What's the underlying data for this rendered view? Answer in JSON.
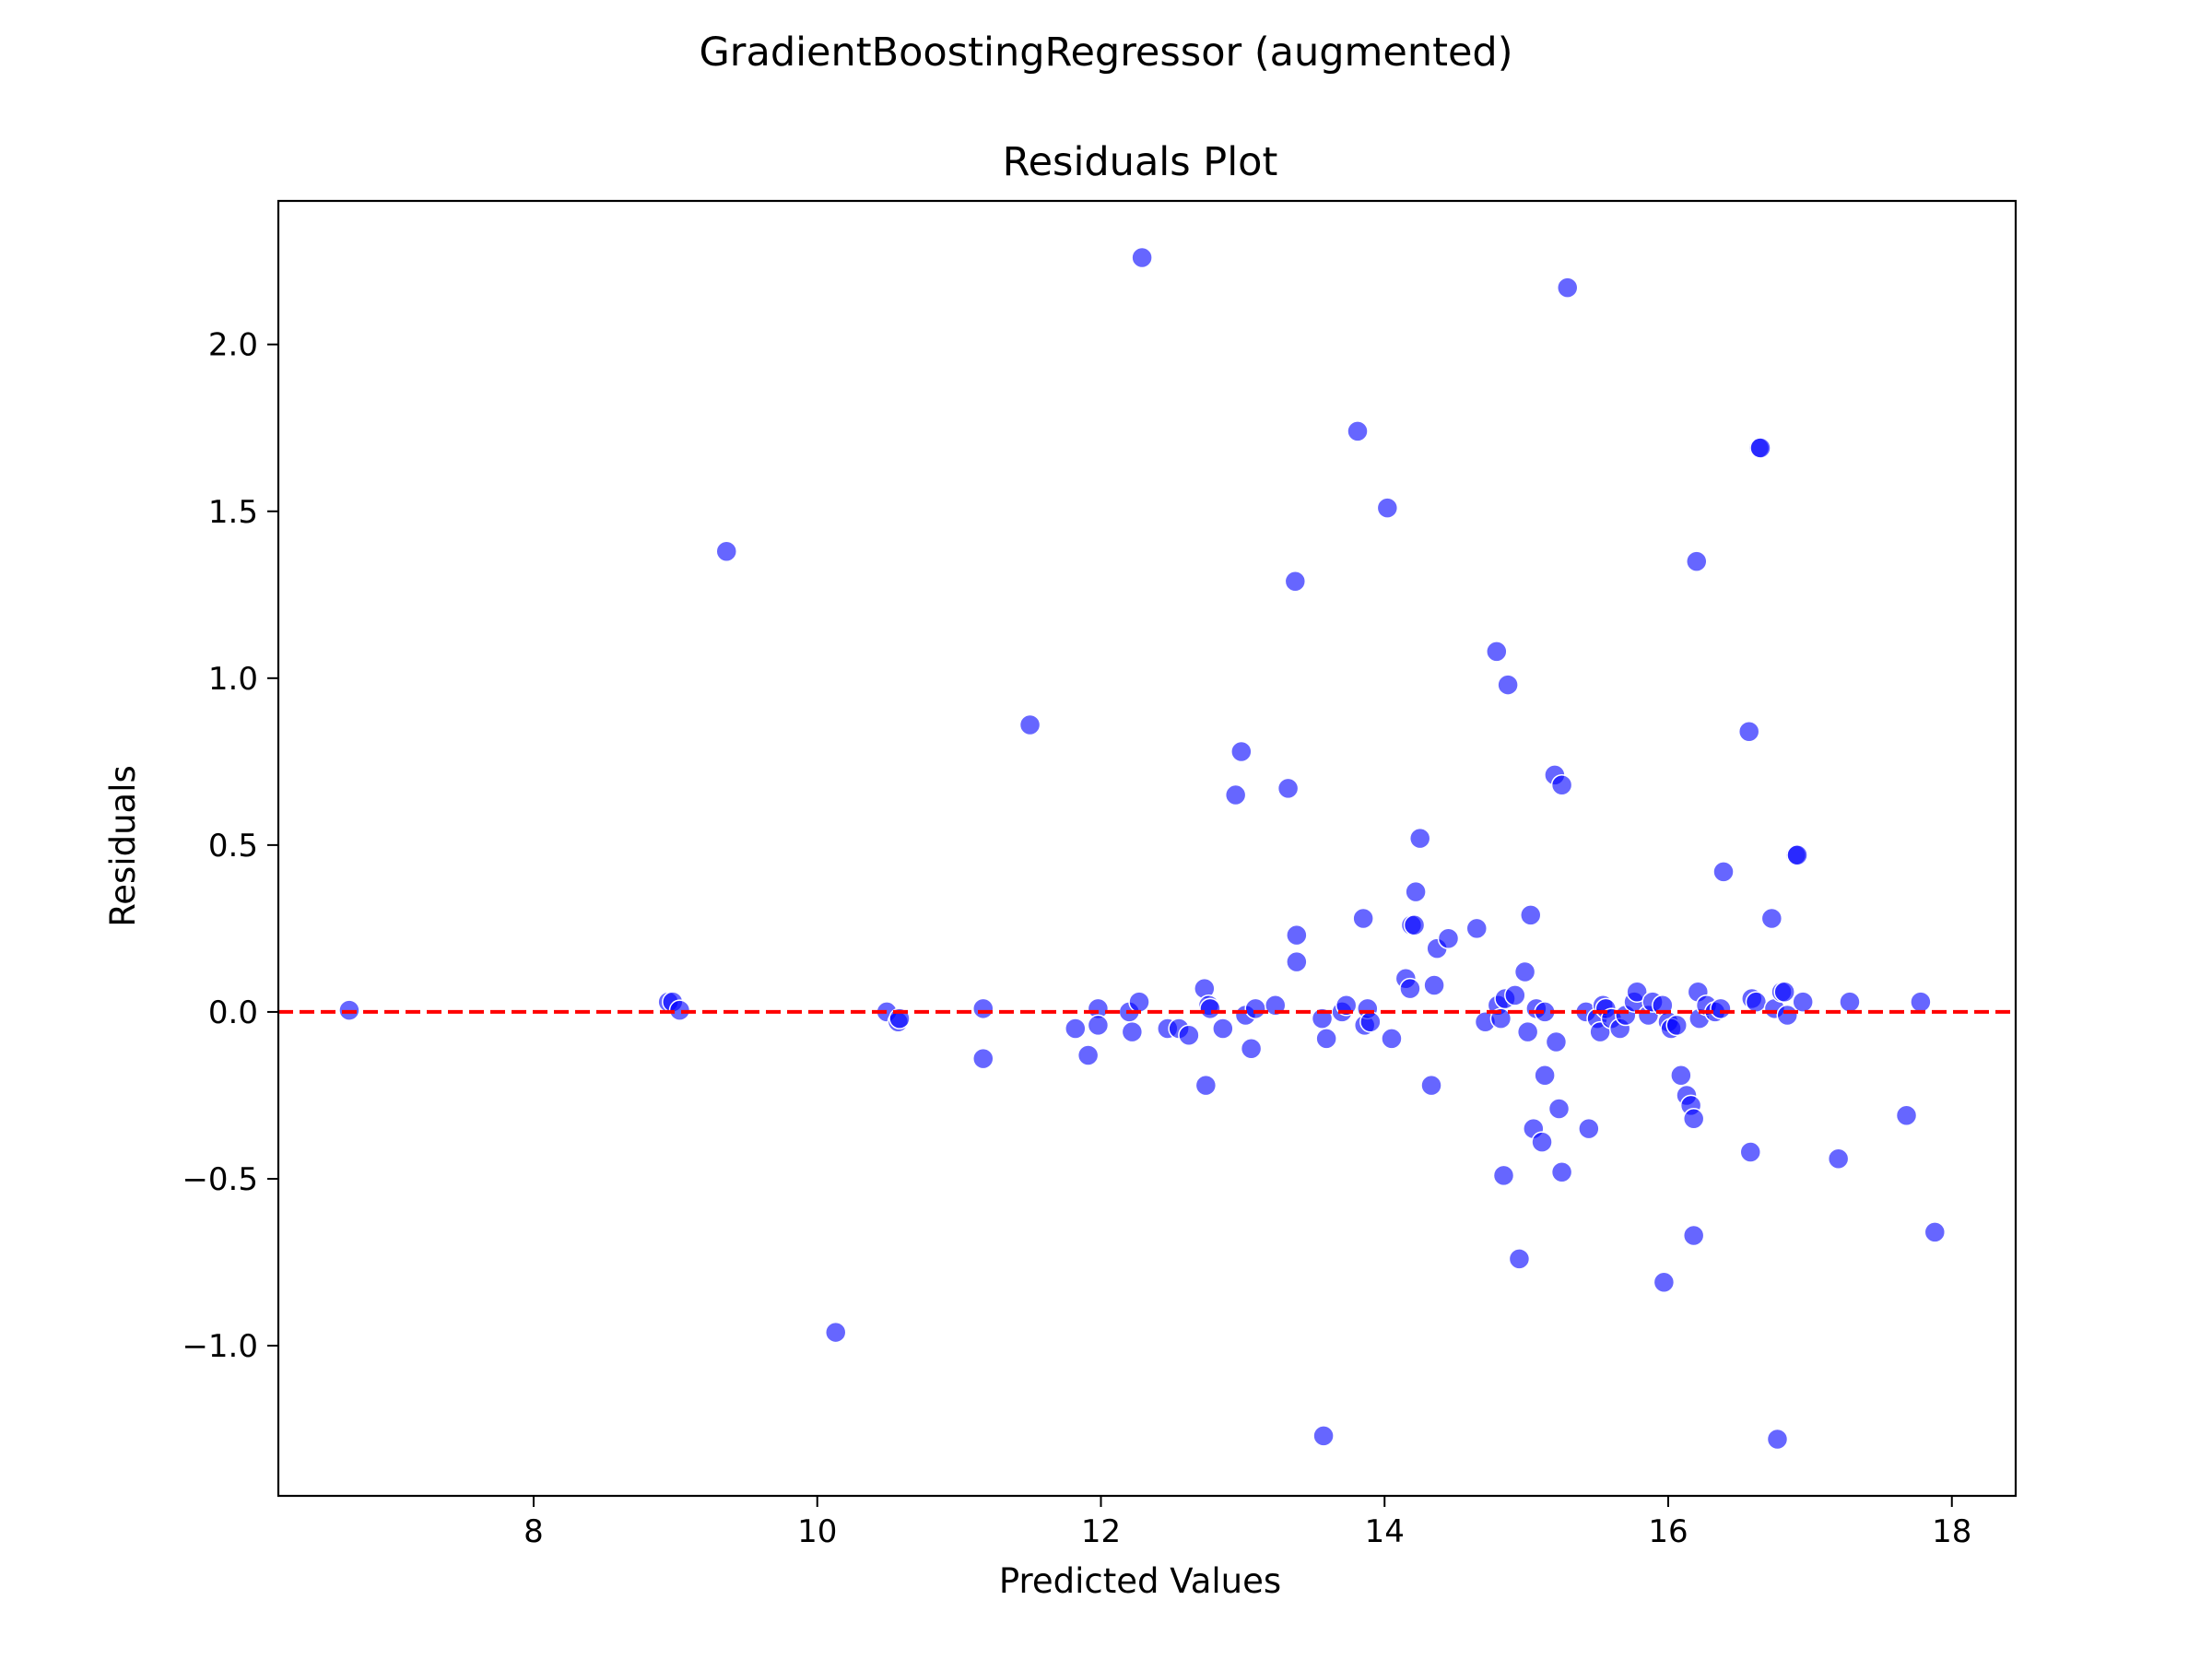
{
  "figure": {
    "suptitle": "GradientBoostingRegressor (augmented)"
  },
  "chart_data": {
    "type": "scatter",
    "title": "Residuals Plot",
    "xlabel": "Predicted Values",
    "ylabel": "Residuals",
    "xlim": [
      6.2,
      18.45
    ],
    "ylim": [
      -1.45,
      2.43
    ],
    "xticks": [
      8,
      10,
      12,
      14,
      16,
      18
    ],
    "xtick_labels": [
      "8",
      "10",
      "12",
      "14",
      "16",
      "18"
    ],
    "yticks": [
      -1.0,
      -0.5,
      0.0,
      0.5,
      1.0,
      1.5,
      2.0
    ],
    "ytick_labels": [
      "−1.0",
      "−0.5",
      "0.0",
      "0.5",
      "1.0",
      "1.5",
      "2.0"
    ],
    "grid": false,
    "point_color": "#0000ff",
    "point_opacity": 0.6,
    "reference_line": {
      "y": 0,
      "color": "#ff0000",
      "style": "dashed"
    },
    "points": [
      {
        "x": 6.7,
        "y": 0.005
      },
      {
        "x": 8.95,
        "y": 0.03
      },
      {
        "x": 8.98,
        "y": 0.03
      },
      {
        "x": 9.03,
        "y": 0.005
      },
      {
        "x": 9.36,
        "y": 1.38
      },
      {
        "x": 10.13,
        "y": -0.96
      },
      {
        "x": 10.49,
        "y": 0.0
      },
      {
        "x": 10.57,
        "y": -0.03
      },
      {
        "x": 10.58,
        "y": -0.02
      },
      {
        "x": 11.17,
        "y": 0.01
      },
      {
        "x": 11.17,
        "y": -0.14
      },
      {
        "x": 11.5,
        "y": 0.86
      },
      {
        "x": 11.82,
        "y": -0.05
      },
      {
        "x": 11.91,
        "y": -0.13
      },
      {
        "x": 11.98,
        "y": 0.01
      },
      {
        "x": 11.98,
        "y": -0.04
      },
      {
        "x": 12.2,
        "y": 0.0
      },
      {
        "x": 12.22,
        "y": -0.06
      },
      {
        "x": 12.27,
        "y": 0.03
      },
      {
        "x": 12.29,
        "y": 2.26
      },
      {
        "x": 12.47,
        "y": -0.05
      },
      {
        "x": 12.55,
        "y": -0.05
      },
      {
        "x": 12.62,
        "y": -0.07
      },
      {
        "x": 12.73,
        "y": 0.07
      },
      {
        "x": 12.74,
        "y": -0.22
      },
      {
        "x": 12.76,
        "y": 0.02
      },
      {
        "x": 12.77,
        "y": 0.01
      },
      {
        "x": 12.86,
        "y": -0.05
      },
      {
        "x": 12.95,
        "y": 0.65
      },
      {
        "x": 12.99,
        "y": 0.78
      },
      {
        "x": 13.02,
        "y": -0.01
      },
      {
        "x": 13.06,
        "y": -0.11
      },
      {
        "x": 13.09,
        "y": 0.01
      },
      {
        "x": 13.23,
        "y": 0.02
      },
      {
        "x": 13.32,
        "y": 0.67
      },
      {
        "x": 13.37,
        "y": 1.29
      },
      {
        "x": 13.38,
        "y": 0.23
      },
      {
        "x": 13.38,
        "y": 0.15
      },
      {
        "x": 13.56,
        "y": -0.02
      },
      {
        "x": 13.57,
        "y": -1.27
      },
      {
        "x": 13.59,
        "y": -0.08
      },
      {
        "x": 13.7,
        "y": 0.0
      },
      {
        "x": 13.73,
        "y": 0.02
      },
      {
        "x": 13.81,
        "y": 1.74
      },
      {
        "x": 13.85,
        "y": 0.28
      },
      {
        "x": 13.86,
        "y": -0.04
      },
      {
        "x": 13.88,
        "y": 0.01
      },
      {
        "x": 13.9,
        "y": -0.03
      },
      {
        "x": 14.02,
        "y": 1.51
      },
      {
        "x": 14.05,
        "y": -0.08
      },
      {
        "x": 14.15,
        "y": 0.1
      },
      {
        "x": 14.18,
        "y": 0.07
      },
      {
        "x": 14.19,
        "y": 0.26
      },
      {
        "x": 14.21,
        "y": 0.26
      },
      {
        "x": 14.22,
        "y": 0.36
      },
      {
        "x": 14.25,
        "y": 0.52
      },
      {
        "x": 14.33,
        "y": -0.22
      },
      {
        "x": 14.35,
        "y": 0.08
      },
      {
        "x": 14.37,
        "y": 0.19
      },
      {
        "x": 14.45,
        "y": 0.22
      },
      {
        "x": 14.65,
        "y": 0.25
      },
      {
        "x": 14.71,
        "y": -0.03
      },
      {
        "x": 14.79,
        "y": 1.08
      },
      {
        "x": 14.8,
        "y": 0.02
      },
      {
        "x": 14.82,
        "y": -0.02
      },
      {
        "x": 14.84,
        "y": -0.49
      },
      {
        "x": 14.85,
        "y": 0.04
      },
      {
        "x": 14.87,
        "y": 0.98
      },
      {
        "x": 14.92,
        "y": 0.05
      },
      {
        "x": 14.95,
        "y": -0.74
      },
      {
        "x": 14.99,
        "y": 0.12
      },
      {
        "x": 15.01,
        "y": -0.06
      },
      {
        "x": 15.03,
        "y": 0.29
      },
      {
        "x": 15.05,
        "y": -0.35
      },
      {
        "x": 15.07,
        "y": 0.01
      },
      {
        "x": 15.11,
        "y": -0.39
      },
      {
        "x": 15.13,
        "y": -0.19
      },
      {
        "x": 15.13,
        "y": 0.0
      },
      {
        "x": 15.2,
        "y": 0.71
      },
      {
        "x": 15.21,
        "y": -0.09
      },
      {
        "x": 15.23,
        "y": -0.29
      },
      {
        "x": 15.25,
        "y": 0.68
      },
      {
        "x": 15.25,
        "y": -0.48
      },
      {
        "x": 15.29,
        "y": 2.17
      },
      {
        "x": 15.42,
        "y": 0.0
      },
      {
        "x": 15.44,
        "y": -0.35
      },
      {
        "x": 15.5,
        "y": -0.02
      },
      {
        "x": 15.52,
        "y": -0.06
      },
      {
        "x": 15.54,
        "y": 0.02
      },
      {
        "x": 15.56,
        "y": 0.01
      },
      {
        "x": 15.6,
        "y": -0.02
      },
      {
        "x": 15.66,
        "y": -0.05
      },
      {
        "x": 15.7,
        "y": -0.01
      },
      {
        "x": 15.76,
        "y": 0.03
      },
      {
        "x": 15.78,
        "y": 0.06
      },
      {
        "x": 15.86,
        "y": -0.01
      },
      {
        "x": 15.89,
        "y": 0.03
      },
      {
        "x": 15.96,
        "y": 0.02
      },
      {
        "x": 15.97,
        "y": -0.81
      },
      {
        "x": 16.0,
        "y": -0.03
      },
      {
        "x": 16.02,
        "y": -0.05
      },
      {
        "x": 16.06,
        "y": -0.04
      },
      {
        "x": 16.09,
        "y": -0.19
      },
      {
        "x": 16.13,
        "y": -0.25
      },
      {
        "x": 16.16,
        "y": -0.28
      },
      {
        "x": 16.18,
        "y": -0.32
      },
      {
        "x": 16.18,
        "y": -0.67
      },
      {
        "x": 16.2,
        "y": 1.35
      },
      {
        "x": 16.21,
        "y": 0.06
      },
      {
        "x": 16.22,
        "y": -0.02
      },
      {
        "x": 16.27,
        "y": 0.02
      },
      {
        "x": 16.33,
        "y": 0.0
      },
      {
        "x": 16.37,
        "y": 0.01
      },
      {
        "x": 16.39,
        "y": 0.42
      },
      {
        "x": 16.57,
        "y": 0.84
      },
      {
        "x": 16.58,
        "y": -0.42
      },
      {
        "x": 16.59,
        "y": 0.04
      },
      {
        "x": 16.62,
        "y": 0.03
      },
      {
        "x": 16.64,
        "y": 1.69
      },
      {
        "x": 16.65,
        "y": 1.69
      },
      {
        "x": 16.73,
        "y": 0.28
      },
      {
        "x": 16.75,
        "y": 0.01
      },
      {
        "x": 16.77,
        "y": -1.28
      },
      {
        "x": 16.8,
        "y": 0.06
      },
      {
        "x": 16.82,
        "y": 0.06
      },
      {
        "x": 16.84,
        "y": -0.01
      },
      {
        "x": 16.9,
        "y": 0.47
      },
      {
        "x": 16.91,
        "y": 0.47
      },
      {
        "x": 16.95,
        "y": 0.03
      },
      {
        "x": 17.2,
        "y": -0.44
      },
      {
        "x": 17.28,
        "y": 0.03
      },
      {
        "x": 17.68,
        "y": -0.31
      },
      {
        "x": 17.78,
        "y": 0.03
      },
      {
        "x": 17.88,
        "y": -0.66
      }
    ]
  }
}
